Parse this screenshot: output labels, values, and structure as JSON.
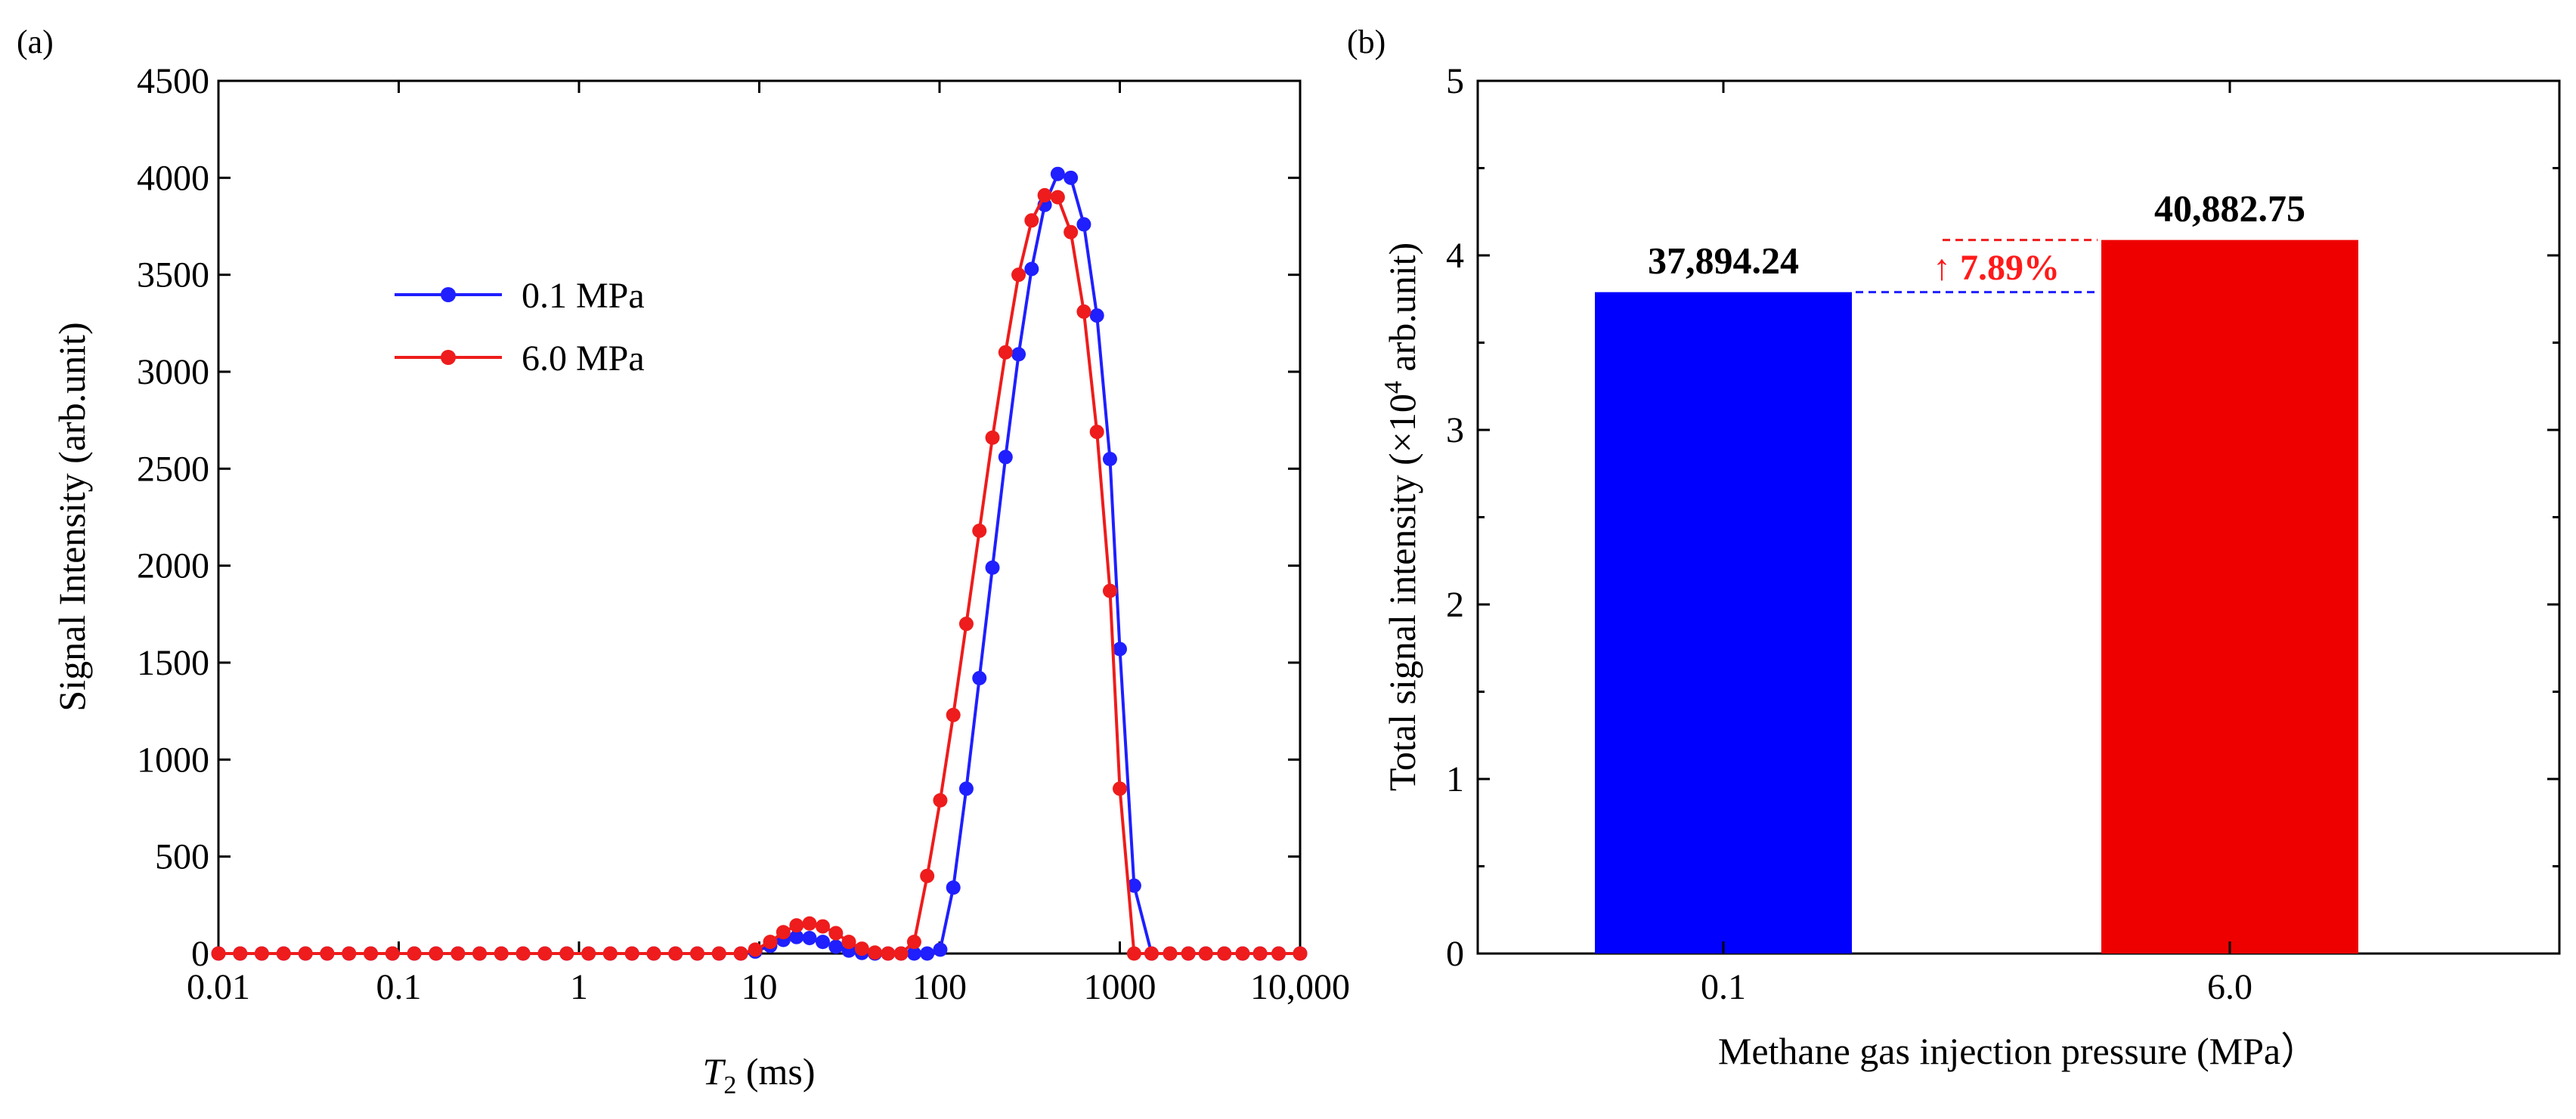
{
  "chart_data": [
    {
      "panel": "(a)",
      "type": "line",
      "xscale": "log",
      "xlabel_main": "T",
      "xlabel_sub": "2",
      "xlabel_unit": " (ms)",
      "ylabel": "Signal Intensity (arb.unit)",
      "xlim": [
        0.01,
        10000
      ],
      "ylim": [
        0,
        4500
      ],
      "xticks": [
        0.01,
        0.1,
        1,
        10,
        100,
        1000,
        10000
      ],
      "xtick_labels": [
        "0.01",
        "0.1",
        "1",
        "10",
        "100",
        "1000",
        "10,000"
      ],
      "yticks": [
        0,
        500,
        1000,
        1500,
        2000,
        2500,
        3000,
        3500,
        4000,
        4500
      ],
      "ytick_labels": [
        "0",
        "500",
        "1000",
        "1500",
        "2000",
        "2500",
        "3000",
        "3500",
        "4000",
        "4500"
      ],
      "legend_position": "upper-left",
      "series": [
        {
          "name": "0.1 MPa",
          "color": "#1f1fff",
          "x": [
            0.01,
            0.0132,
            0.0174,
            0.023,
            0.0304,
            0.0401,
            0.053,
            0.07,
            0.0924,
            0.122,
            0.161,
            0.213,
            0.281,
            0.371,
            0.49,
            0.647,
            0.855,
            1.13,
            1.49,
            1.97,
            2.6,
            3.43,
            4.53,
            5.98,
            7.9,
            9.5,
            11.5,
            13.6,
            16.1,
            19.0,
            22.5,
            26.6,
            31.4,
            37.1,
            43.8,
            51.8,
            61.2,
            72.3,
            85.4,
            100.9,
            119.2,
            140.8,
            166.4,
            196.6,
            232.3,
            274.4,
            324.2,
            383.1,
            452.6,
            534.7,
            631.7,
            746.3,
            881.7,
            1000,
            1200,
            1500,
            1900,
            2400,
            3000,
            3800,
            4800,
            6000,
            7600,
            10000
          ],
          "y": [
            0,
            0,
            0,
            0,
            0,
            0,
            0,
            0,
            0,
            0,
            0,
            0,
            0,
            0,
            0,
            0,
            0,
            0,
            0,
            0,
            0,
            0,
            0,
            0,
            0,
            10,
            40,
            70,
            85,
            80,
            60,
            35,
            15,
            3,
            0,
            0,
            0,
            0,
            0,
            20,
            340,
            850,
            1420,
            1990,
            2560,
            3090,
            3530,
            3860,
            4020,
            4000,
            3760,
            3290,
            2550,
            1570,
            350,
            0,
            0,
            0,
            0,
            0,
            0,
            0,
            0,
            0
          ]
        },
        {
          "name": "6.0 MPa",
          "color": "#ee1c1c",
          "x": [
            0.01,
            0.0132,
            0.0174,
            0.023,
            0.0304,
            0.0401,
            0.053,
            0.07,
            0.0924,
            0.122,
            0.161,
            0.213,
            0.281,
            0.371,
            0.49,
            0.647,
            0.855,
            1.13,
            1.49,
            1.97,
            2.6,
            3.43,
            4.53,
            5.98,
            7.9,
            9.5,
            11.5,
            13.6,
            16.1,
            19.0,
            22.5,
            26.6,
            31.4,
            37.1,
            43.8,
            51.8,
            61.2,
            72.3,
            85.4,
            100.9,
            119.2,
            140.8,
            166.4,
            196.6,
            232.3,
            274.4,
            324.2,
            383.1,
            452.6,
            534.7,
            631.7,
            746.3,
            881.7,
            1000,
            1200,
            1500,
            1900,
            2400,
            3000,
            3800,
            4800,
            6000,
            7600,
            10000
          ],
          "y": [
            0,
            0,
            0,
            0,
            0,
            0,
            0,
            0,
            0,
            0,
            0,
            0,
            0,
            0,
            0,
            0,
            0,
            0,
            0,
            0,
            0,
            0,
            0,
            0,
            0,
            20,
            60,
            110,
            145,
            155,
            140,
            105,
            60,
            25,
            5,
            0,
            0,
            60,
            400,
            790,
            1230,
            1700,
            2180,
            2660,
            3100,
            3500,
            3780,
            3910,
            3900,
            3720,
            3310,
            2690,
            1870,
            850,
            0,
            0,
            0,
            0,
            0,
            0,
            0,
            0,
            0,
            0
          ]
        }
      ]
    },
    {
      "panel": "(b)",
      "type": "bar",
      "xlabel": "Methane gas injection pressure (MPa）",
      "ylabel_prefix": "Total signal intensity (×10",
      "ylabel_exp": "4",
      "ylabel_suffix": " arb.unit)",
      "categories": [
        "0.1",
        "6.0"
      ],
      "values": [
        3.789424,
        4.088275
      ],
      "value_labels": [
        "37,894.24",
        "40,882.75"
      ],
      "colors": [
        "#0000ff",
        "#ee0000"
      ],
      "ylim": [
        0,
        5
      ],
      "yticks": [
        0,
        1,
        2,
        3,
        4,
        5
      ],
      "ytick_labels": [
        "0",
        "1",
        "2",
        "3",
        "4",
        "5"
      ],
      "annotation": "7.89%",
      "annotation_arrow": "↑"
    }
  ]
}
